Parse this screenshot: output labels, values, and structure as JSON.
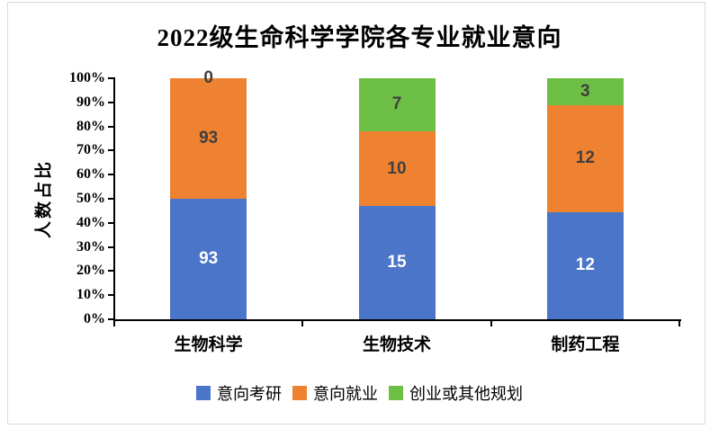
{
  "window": {
    "background_color": "#FFFFFF",
    "frame_border_color": "#D9D9D9"
  },
  "chart_data": {
    "type": "bar",
    "subtype": "percent_stacked",
    "title": "2022级生命科学学院各专业就业意向",
    "xlabel": "",
    "ylabel": "人数占比",
    "categories": [
      "生物科学",
      "生物技术",
      "制药工程"
    ],
    "series": [
      {
        "name": "意向考研",
        "color": "#4A75C8",
        "label_color": "#FFFFFF",
        "values": [
          93,
          15,
          12
        ]
      },
      {
        "name": "意向就业",
        "color": "#EE8231",
        "label_color": "#3F3F3F",
        "values": [
          93,
          10,
          12
        ]
      },
      {
        "name": "创业或其他规划",
        "color": "#6DBE45",
        "label_color": "#3F3F3F",
        "values": [
          0,
          7,
          3
        ]
      }
    ],
    "y_axis": {
      "min": 0,
      "max": 100,
      "step": 10,
      "tick_labels": [
        "0%",
        "10%",
        "20%",
        "30%",
        "40%",
        "50%",
        "60%",
        "70%",
        "80%",
        "90%",
        "100%"
      ]
    },
    "grid": false,
    "legend_position": "bottom",
    "axis_color": "#000000"
  }
}
